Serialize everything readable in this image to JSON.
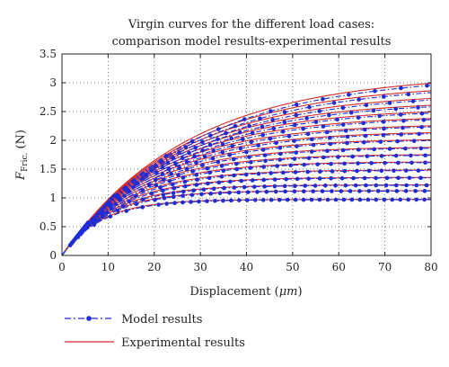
{
  "colors": {
    "model": "#1c2cd6",
    "experimental": "#d42a2a",
    "grid": "#555555",
    "axis": "#222222"
  },
  "chart_data": {
    "type": "line",
    "title_line1": "Virgin curves for the different load cases:",
    "title_line2": "comparison model results-experimental results",
    "xlabel_prefix": "Displacement (",
    "xlabel_unit": "μm",
    "xlabel_suffix": ")",
    "ylabel_main": "F",
    "ylabel_sub": "Fric.",
    "ylabel_unit": " (N)",
    "xlim": [
      0,
      80
    ],
    "ylim": [
      0,
      3.5
    ],
    "xticks": [
      0,
      10,
      20,
      30,
      40,
      50,
      60,
      70,
      80
    ],
    "yticks": [
      0,
      0.5,
      1,
      1.5,
      2,
      2.5,
      3,
      3.5
    ],
    "xtick_labels": [
      "0",
      "10",
      "20",
      "30",
      "40",
      "50",
      "60",
      "70",
      "80"
    ],
    "ytick_labels": [
      "0",
      "0.5",
      "1",
      "1.5",
      "2",
      "2.5",
      "3",
      "3.5"
    ],
    "grid": true,
    "grid_style": "dotted",
    "legend_position": "below-left",
    "legend": [
      {
        "label": "Model results",
        "style": "dash-dot with circle markers"
      },
      {
        "label": "Experimental results",
        "style": "solid"
      }
    ],
    "curve_model": "F = Fmax * (1 - exp(-x / x0))",
    "x0_over_Fmax": 9.0,
    "series": [
      {
        "fmax": 0.97
      },
      {
        "fmax": 1.12
      },
      {
        "fmax": 1.22
      },
      {
        "fmax": 1.35
      },
      {
        "fmax": 1.48
      },
      {
        "fmax": 1.62
      },
      {
        "fmax": 1.75
      },
      {
        "fmax": 1.88
      },
      {
        "fmax": 2.02
      },
      {
        "fmax": 2.15
      },
      {
        "fmax": 2.28
      },
      {
        "fmax": 2.42
      },
      {
        "fmax": 2.55
      },
      {
        "fmax": 2.68
      },
      {
        "fmax": 2.82
      },
      {
        "fmax": 2.98
      },
      {
        "fmax": 3.14
      }
    ]
  }
}
